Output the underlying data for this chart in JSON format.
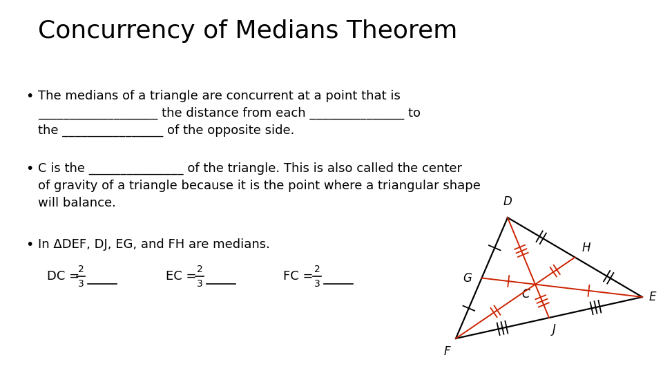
{
  "title": "Concurrency of Medians Theorem",
  "title_fontsize": 26,
  "bg_color": "#ffffff",
  "text_color": "#000000",
  "body_fontsize": 13.0,
  "triangle_color": "#000000",
  "median_color": "#cc2200",
  "triangle_lw": 1.6,
  "median_lw": 1.4,
  "tick_lw": 1.3,
  "tick_size": 0.008,
  "D": [
    0.77,
    0.72
  ],
  "E": [
    0.96,
    0.53
  ],
  "F": [
    0.685,
    0.36
  ],
  "label_fontsize": 12
}
